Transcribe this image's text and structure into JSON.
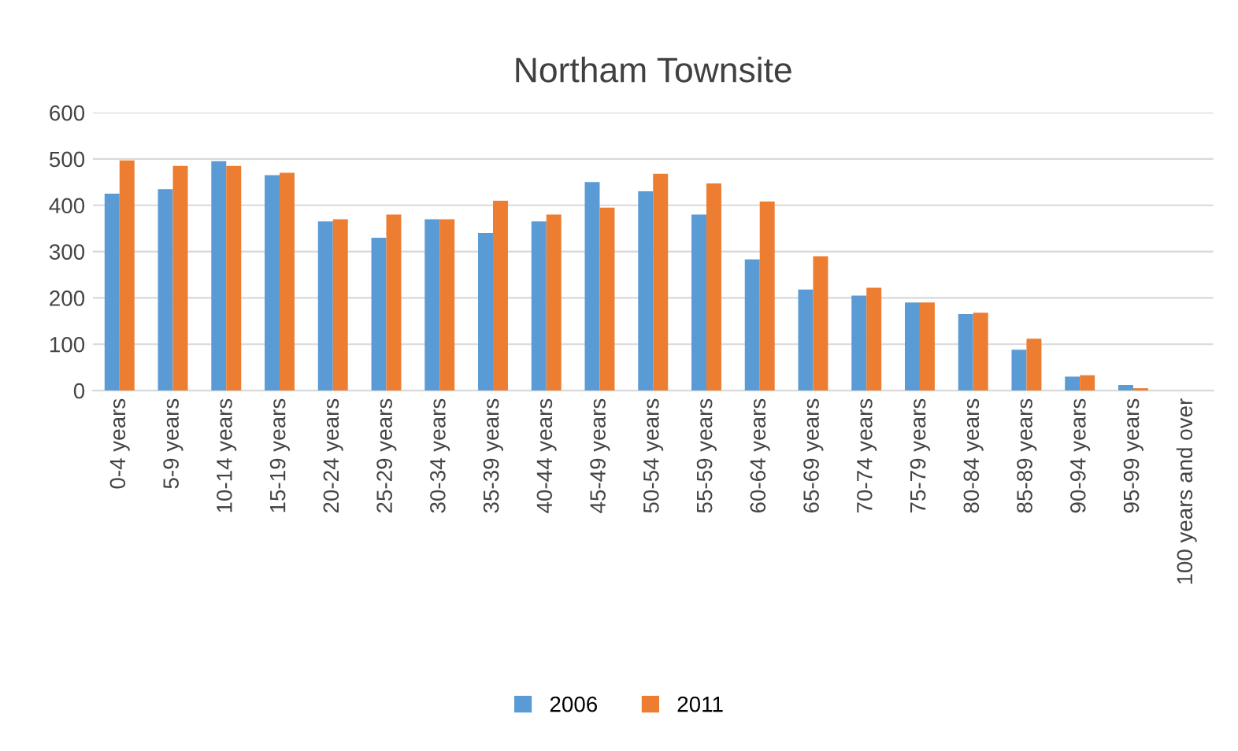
{
  "chart_data": {
    "type": "bar",
    "title": "Northam Townsite",
    "categories": [
      "0-4 years",
      "5-9 years",
      "10-14 years",
      "15-19 years",
      "20-24 years",
      "25-29 years",
      "30-34 years",
      "35-39 years",
      "40-44 years",
      "45-49 years",
      "50-54 years",
      "55-59 years",
      "60-64 years",
      "65-69 years",
      "70-74 years",
      "75-79 years",
      "80-84 years",
      "85-89 years",
      "90-94 years",
      "95-99 years",
      "100 years and over"
    ],
    "series": [
      {
        "name": "2006",
        "color": "#5b9bd5",
        "values": [
          425,
          435,
          495,
          465,
          365,
          330,
          370,
          340,
          365,
          450,
          430,
          380,
          283,
          218,
          205,
          190,
          165,
          88,
          30,
          12,
          0
        ]
      },
      {
        "name": "2011",
        "color": "#ed7d31",
        "values": [
          497,
          485,
          485,
          470,
          370,
          380,
          370,
          410,
          380,
          395,
          468,
          447,
          408,
          290,
          222,
          190,
          168,
          112,
          33,
          5,
          0
        ]
      }
    ],
    "ylim": [
      0,
      600
    ],
    "yticks": [
      0,
      100,
      200,
      300,
      400,
      500,
      600
    ],
    "grid": "y",
    "legend": "bottom"
  }
}
